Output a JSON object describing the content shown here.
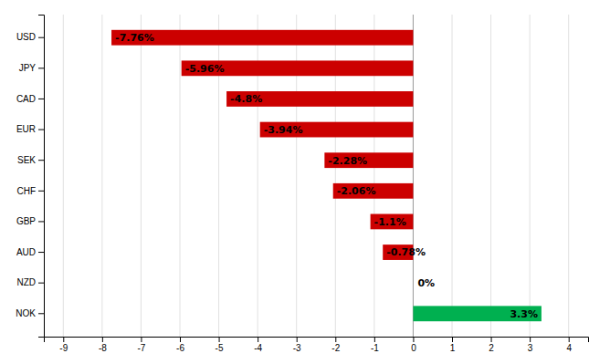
{
  "chart_data": {
    "type": "bar",
    "orientation": "horizontal",
    "categories": [
      "NOK",
      "NZD",
      "AUD",
      "GBP",
      "CHF",
      "SEK",
      "EUR",
      "CAD",
      "JPY",
      "USD"
    ],
    "values": [
      3.3,
      0,
      -0.78,
      -1.1,
      -2.06,
      -2.28,
      -3.94,
      -4.8,
      -5.96,
      -7.76
    ],
    "value_labels": [
      "3.3%",
      "0%",
      "-0.78%",
      "-1.1%",
      "-2.06%",
      "-2.28%",
      "-3.94%",
      "-4.8%",
      "-5.96%",
      "-7.76%"
    ],
    "colors": [
      "#00b050",
      "#ffffff",
      "#cc0000",
      "#cc0000",
      "#cc0000",
      "#cc0000",
      "#cc0000",
      "#cc0000",
      "#cc0000",
      "#cc0000"
    ],
    "xlim": [
      -9.5,
      4.5
    ],
    "xticks": [
      -9,
      -8,
      -7,
      -6,
      -5,
      -4,
      -3,
      -2,
      -1,
      0,
      1,
      2,
      3,
      4
    ],
    "grid": true,
    "data_labels": true
  }
}
